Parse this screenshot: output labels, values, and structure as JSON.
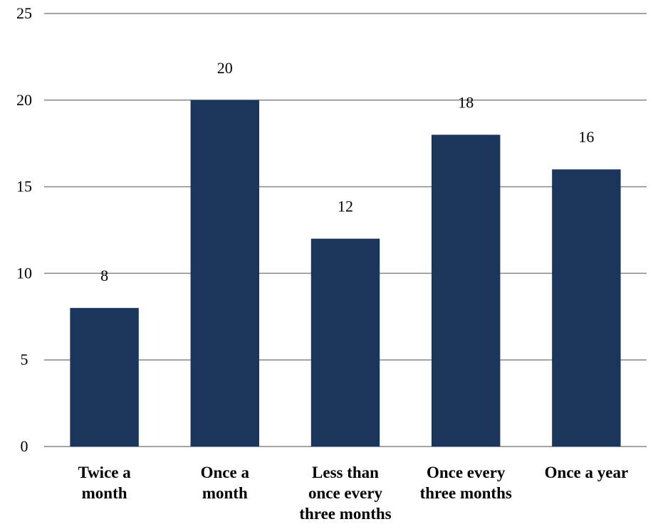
{
  "chart_data": {
    "type": "bar",
    "title": "",
    "xlabel": "",
    "ylabel": "",
    "categories": [
      [
        "Twice a",
        "month"
      ],
      [
        "Once a",
        "month"
      ],
      [
        "Less than",
        "once every",
        "three months"
      ],
      [
        "Once every",
        "three months"
      ],
      [
        "Once a year"
      ]
    ],
    "values": [
      8,
      20,
      12,
      18,
      16
    ],
    "data_labels": [
      "8",
      "20",
      "12",
      "18",
      "16"
    ],
    "ylim": [
      0,
      25
    ],
    "yticks": [
      0,
      5,
      10,
      15,
      20,
      25
    ],
    "grid": true,
    "legend": "none",
    "bar_color": "#1b365d",
    "grid_color": "#868686"
  }
}
